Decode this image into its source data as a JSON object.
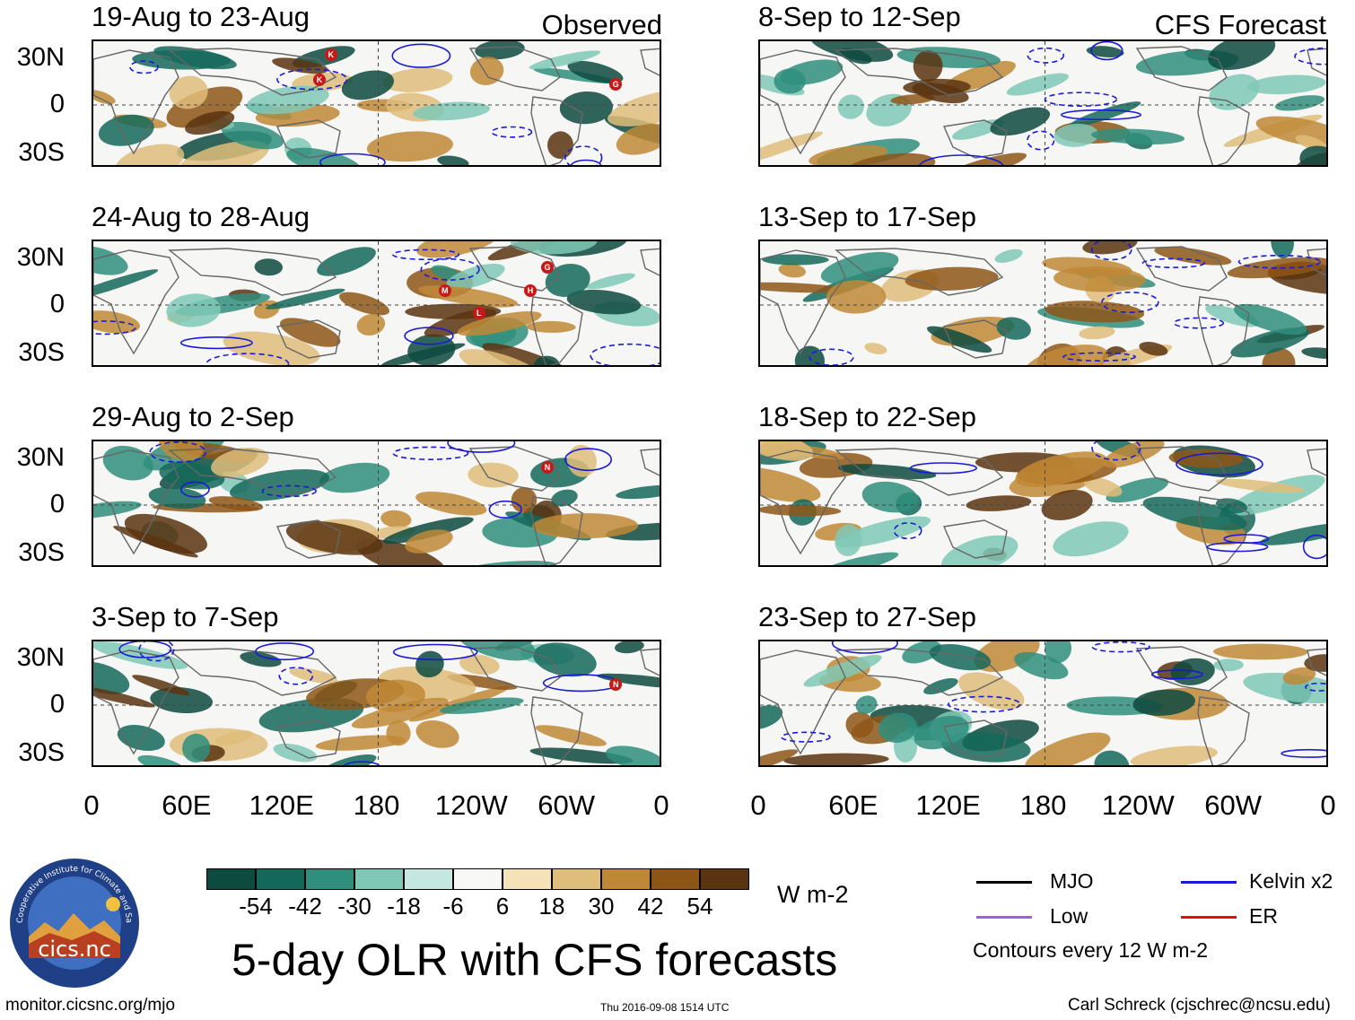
{
  "chart_data": {
    "type": "heatmap",
    "title": "5-day OLR with CFS forecasts",
    "units": "W m-2",
    "lat_ticks": [
      "30N",
      "0",
      "30S"
    ],
    "lon_ticks": [
      "0",
      "60E",
      "120E",
      "180",
      "120W",
      "60W",
      "0"
    ],
    "observed_label": "Observed",
    "forecast_label": "CFS Forecast",
    "panels": [
      {
        "title": "19-Aug to 23-Aug",
        "column": "observed",
        "storms": [
          "K",
          "K",
          "G"
        ]
      },
      {
        "title": "24-Aug to 28-Aug",
        "column": "observed",
        "storms": [
          "M",
          "L",
          "H",
          "G"
        ]
      },
      {
        "title": "29-Aug to 2-Sep",
        "column": "observed",
        "storms": [
          "N"
        ]
      },
      {
        "title": "3-Sep to 7-Sep",
        "column": "observed",
        "storms": [
          "N"
        ]
      },
      {
        "title": "8-Sep to 12-Sep",
        "column": "forecast",
        "storms": []
      },
      {
        "title": "13-Sep to 17-Sep",
        "column": "forecast",
        "storms": []
      },
      {
        "title": "18-Sep to 22-Sep",
        "column": "forecast",
        "storms": []
      },
      {
        "title": "23-Sep to 27-Sep",
        "column": "forecast",
        "storms": []
      }
    ],
    "colorbar": {
      "labels": [
        "-54",
        "-42",
        "-30",
        "-18",
        "-6",
        "6",
        "18",
        "30",
        "42",
        "54"
      ],
      "colors": [
        "#0d4a3f",
        "#14695a",
        "#2f8e7c",
        "#7fc8b6",
        "#c4e8df",
        "#f8f8f6",
        "#f4e3b8",
        "#dfbd7a",
        "#bf8836",
        "#8e5616",
        "#5a3410"
      ]
    },
    "legend": {
      "items": [
        {
          "label": "MJO",
          "color": "#000000"
        },
        {
          "label": "Kelvin x2",
          "color": "#1a1ad8"
        },
        {
          "label": "Low",
          "color": "#a05ee8"
        },
        {
          "label": "ER",
          "color": "#e01010"
        }
      ],
      "note": "Contours every 12 W m-2"
    }
  },
  "footer": {
    "logo_text": "cics.nc",
    "logo_ring_text": "Cooperative Institute for Climate and Satellites",
    "url": "monitor.cicsnc.org/mjo",
    "timestamp": "Thu 2016-09-08 1514 UTC",
    "author": "Carl Schreck (cjschrec@ncsu.edu)"
  }
}
